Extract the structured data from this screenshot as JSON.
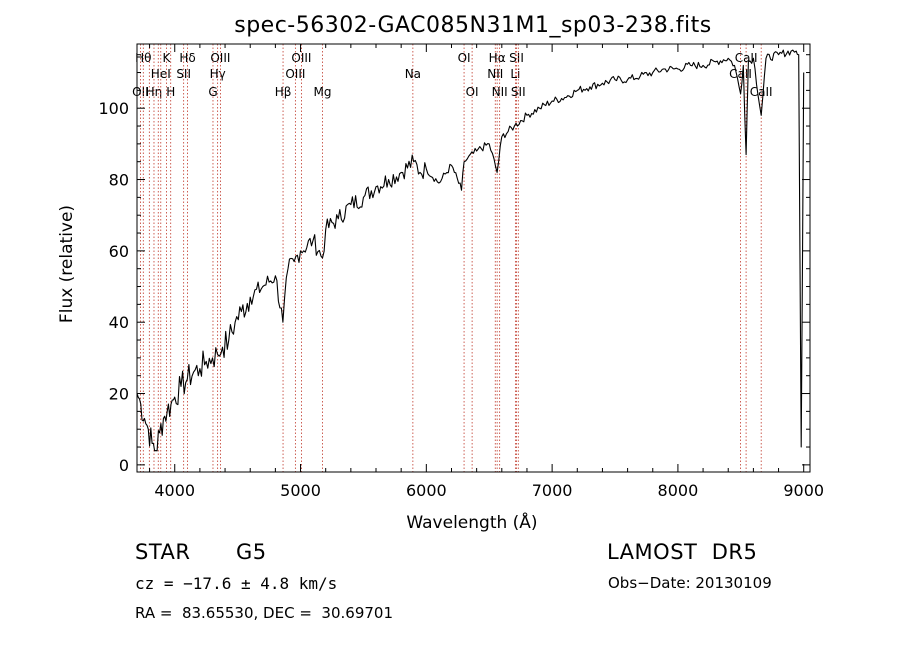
{
  "chart_data": {
    "type": "line",
    "title": "spec-56302-GAC085N31M1_sp03-238.fits",
    "xlabel": "Wavelength (Å)",
    "ylabel": "Flux (relative)",
    "xlim": [
      3700,
      9050
    ],
    "ylim": [
      -2,
      118
    ],
    "xticks": [
      4000,
      5000,
      6000,
      7000,
      8000,
      9000
    ],
    "yticks": [
      0,
      20,
      40,
      60,
      80,
      100
    ],
    "line_color": "#000000",
    "marker_color": "#c0392b",
    "grid": false,
    "series": [
      {
        "x": [
          3700,
          3730,
          3760,
          3790,
          3820,
          3850,
          3880,
          3910,
          3940,
          3970,
          4000,
          4050,
          4100,
          4150,
          4200,
          4250,
          4300,
          4340,
          4380,
          4430,
          4480,
          4530,
          4600,
          4700,
          4800,
          4860,
          4900,
          4950,
          5000,
          5100,
          5175,
          5200,
          5300,
          5400,
          5500,
          5600,
          5700,
          5800,
          5900,
          5950,
          6000,
          6100,
          6200,
          6280,
          6300,
          6400,
          6500,
          6563,
          6600,
          6700,
          6800,
          6900,
          7000,
          7100,
          7200,
          7300,
          7400,
          7500,
          7600,
          7700,
          7800,
          7900,
          8000,
          8100,
          8200,
          8300,
          8400,
          8450,
          8498,
          8520,
          8542,
          8560,
          8600,
          8662,
          8700,
          8800,
          8900,
          8940,
          8960,
          8980,
          9000
        ],
        "y": [
          20,
          17,
          13,
          10,
          6,
          4,
          9,
          13,
          15,
          17,
          19,
          22,
          24,
          26,
          27,
          29,
          30,
          31,
          33,
          35,
          40,
          43,
          47,
          50,
          53,
          40,
          55,
          57,
          60,
          63,
          58,
          66,
          69,
          73,
          75,
          78,
          80,
          82,
          85,
          82,
          83,
          79,
          84,
          77,
          85,
          88,
          90,
          82,
          92,
          95,
          98,
          100,
          102,
          103,
          105,
          106,
          107,
          108,
          108,
          109,
          110,
          111,
          111,
          112,
          112,
          113,
          114,
          112,
          104,
          112,
          87,
          113,
          114,
          98,
          114,
          115,
          116,
          116,
          115,
          5,
          110
        ]
      }
    ],
    "line_markers": [
      {
        "w": 3727,
        "top": "OII",
        "row": 3
      },
      {
        "w": 3750,
        "top": "Hθ",
        "row": 1
      },
      {
        "w": 3798,
        "top": "",
        "row": 0
      },
      {
        "w": 3835,
        "top": "Hη",
        "row": 3
      },
      {
        "w": 3869,
        "top": "",
        "row": 0
      },
      {
        "w": 3889,
        "top": "HeI",
        "row": 2
      },
      {
        "w": 3934,
        "top": "K",
        "row": 1
      },
      {
        "w": 3968,
        "top": "H",
        "row": 3
      },
      {
        "w": 4071,
        "top": "SII",
        "row": 2
      },
      {
        "w": 4102,
        "top": "Hδ",
        "row": 1
      },
      {
        "w": 4304,
        "top": "G",
        "row": 3
      },
      {
        "w": 4341,
        "top": "Hγ",
        "row": 2
      },
      {
        "w": 4363,
        "top": "OIII",
        "row": 1
      },
      {
        "w": 4861,
        "top": "Hβ",
        "row": 3
      },
      {
        "w": 4959,
        "top": "OIII",
        "row": 2
      },
      {
        "w": 5007,
        "top": "OIII",
        "row": 1
      },
      {
        "w": 5175,
        "top": "Mg",
        "row": 3
      },
      {
        "w": 5893,
        "top": "Na",
        "row": 2
      },
      {
        "w": 6300,
        "top": "OI",
        "row": 1
      },
      {
        "w": 6364,
        "top": "OI",
        "row": 3
      },
      {
        "w": 6548,
        "top": "NII",
        "row": 2
      },
      {
        "w": 6563,
        "top": "Hα",
        "row": 1
      },
      {
        "w": 6583,
        "top": "NII",
        "row": 3
      },
      {
        "w": 6708,
        "top": "Li",
        "row": 2
      },
      {
        "w": 6717,
        "top": "SII",
        "row": 1
      },
      {
        "w": 6731,
        "top": "SII",
        "row": 3
      },
      {
        "w": 8498,
        "top": "CaII",
        "row": 2
      },
      {
        "w": 8542,
        "top": "CaII",
        "row": 1
      },
      {
        "w": 8662,
        "top": "CaII",
        "row": 3
      }
    ]
  },
  "info": {
    "object_class": "STAR",
    "subclass": "G5",
    "survey": "LAMOST  DR5",
    "redshift": "cz = −17.6 ± 4.8 km/s",
    "obs_date": "Obs−Date: 20130109",
    "coords": "RA =  83.65530, DEC =  30.69701"
  }
}
